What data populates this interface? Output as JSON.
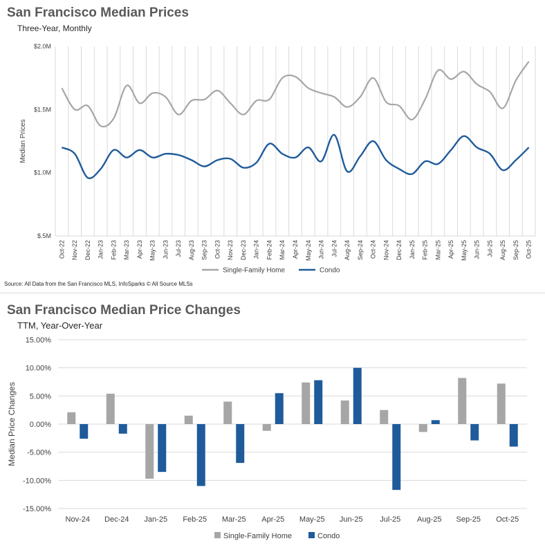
{
  "chart_data": [
    {
      "type": "line",
      "title": "San Francisco Median Prices",
      "subtitle": "Three-Year, Monthly",
      "ylabel": "Median Prices",
      "ylim": [
        0.5,
        2.0
      ],
      "yticks": [
        0.5,
        1.0,
        1.5,
        2.0
      ],
      "ytick_labels": [
        "$.5M",
        "$1.0M",
        "$1.5M",
        "$2.0M"
      ],
      "categories": [
        "Oct-22",
        "Nov-22",
        "Dec-22",
        "Jan-23",
        "Feb-23",
        "Mar-23",
        "Apr-23",
        "May-23",
        "Jun-23",
        "Jul-23",
        "Aug-23",
        "Sep-23",
        "Oct-23",
        "Nov-23",
        "Dec-23",
        "Jan-24",
        "Feb-24",
        "Mar-24",
        "Apr-24",
        "May-24",
        "Jun-24",
        "Jul-24",
        "Aug-24",
        "Sep-24",
        "Oct-24",
        "Nov-24",
        "Dec-24",
        "Jan-25",
        "Feb-25",
        "Mar-25",
        "Apr-25",
        "May-25",
        "Jun-25",
        "Jul-25",
        "Aug-25",
        "Sep-25",
        "Oct-25"
      ],
      "series": [
        {
          "name": "Single-Family Home",
          "color": "#a6a6a6",
          "values": [
            1.67,
            1.5,
            1.53,
            1.37,
            1.43,
            1.69,
            1.55,
            1.63,
            1.6,
            1.46,
            1.57,
            1.58,
            1.65,
            1.55,
            1.46,
            1.57,
            1.58,
            1.75,
            1.76,
            1.67,
            1.63,
            1.6,
            1.52,
            1.6,
            1.75,
            1.56,
            1.53,
            1.42,
            1.58,
            1.81,
            1.74,
            1.8,
            1.7,
            1.64,
            1.51,
            1.73,
            1.88
          ]
        },
        {
          "name": "Condo",
          "color": "#1f5b9a",
          "values": [
            1.2,
            1.15,
            0.96,
            1.03,
            1.18,
            1.12,
            1.18,
            1.12,
            1.15,
            1.14,
            1.1,
            1.05,
            1.1,
            1.11,
            1.04,
            1.08,
            1.23,
            1.15,
            1.12,
            1.2,
            1.09,
            1.3,
            1.01,
            1.13,
            1.25,
            1.1,
            1.03,
            0.99,
            1.09,
            1.07,
            1.18,
            1.29,
            1.2,
            1.15,
            1.02,
            1.1,
            1.2
          ]
        }
      ],
      "grid": "vertical",
      "legend": "bottom-center"
    },
    {
      "type": "bar",
      "title": "San Francisco Median Price Changes",
      "subtitle": "TTM, Year-Over-Year",
      "ylabel": "Median Price Changes",
      "ylim": [
        -15,
        15
      ],
      "yticks": [
        -15,
        -10,
        -5,
        0,
        5,
        10,
        15
      ],
      "ytick_labels": [
        "-15.00%",
        "-10.00%",
        "-5.00%",
        "0.00%",
        "5.00%",
        "10.00%",
        "15.00%"
      ],
      "categories": [
        "Nov-24",
        "Dec-24",
        "Jan-25",
        "Feb-25",
        "Mar-25",
        "Apr-25",
        "May-25",
        "Jun-25",
        "Jul-25",
        "Aug-25",
        "Sep-25",
        "Oct-25"
      ],
      "series": [
        {
          "name": "Single-Family Home",
          "color": "#a6a6a6",
          "values": [
            2.1,
            5.4,
            -9.7,
            1.5,
            4.0,
            -1.2,
            7.4,
            4.2,
            2.5,
            -1.4,
            8.2,
            7.2
          ]
        },
        {
          "name": "Condo",
          "color": "#1f5b9a",
          "values": [
            -2.6,
            -1.7,
            -8.5,
            -11.0,
            -6.9,
            5.5,
            7.8,
            10.0,
            -11.7,
            0.7,
            -2.9,
            -4.0
          ]
        }
      ],
      "grid": "horizontal",
      "legend": "bottom-center"
    }
  ],
  "source": "Source: All Data from the San Francisco MLS, InfoSparks © All Source MLSs"
}
